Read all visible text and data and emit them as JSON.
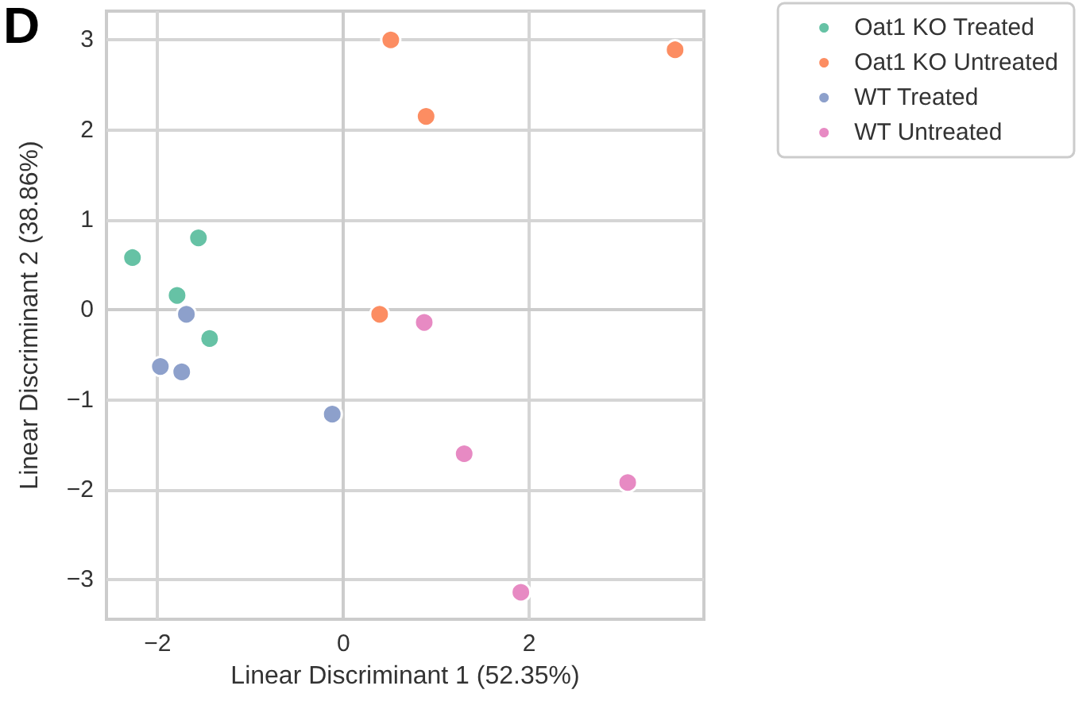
{
  "chart_data": {
    "type": "scatter",
    "xlabel": "Linear Discriminant 1 (52.35%)",
    "ylabel": "Linear Discriminant 2 (38.86%)",
    "annotations": [
      "D"
    ],
    "series": [
      {
        "name": "Oat1 KO Treated",
        "color": "#66c2a5",
        "x": [
          -2.27,
          -1.56,
          -1.79,
          -1.44
        ],
        "values": [
          0.58,
          0.8,
          0.16,
          -0.32
        ]
      },
      {
        "name": "Oat1 KO Untreated",
        "color": "#fc8d62",
        "x": [
          0.51,
          3.57,
          0.89,
          0.39
        ],
        "values": [
          3.0,
          2.89,
          2.15,
          -0.05
        ]
      },
      {
        "name": "WT Treated",
        "color": "#8da0cb",
        "x": [
          -1.69,
          -1.97,
          -1.74,
          -0.12
        ],
        "values": [
          -0.05,
          -0.63,
          -0.69,
          -1.16
        ]
      },
      {
        "name": "WT Untreated",
        "color": "#e78ac3",
        "x": [
          0.87,
          1.3,
          3.06,
          1.91
        ],
        "values": [
          -0.14,
          -1.6,
          -1.92,
          -3.14
        ]
      }
    ],
    "xlim": [
      -2.55,
      3.88
    ],
    "xticks": [
      -2,
      0,
      2
    ],
    "ylim": [
      -3.44,
      3.32
    ],
    "yticks": [
      -3,
      -2,
      -1,
      0,
      1,
      2,
      3
    ],
    "grid": true,
    "legend": "top right",
    "marker": "circle"
  }
}
